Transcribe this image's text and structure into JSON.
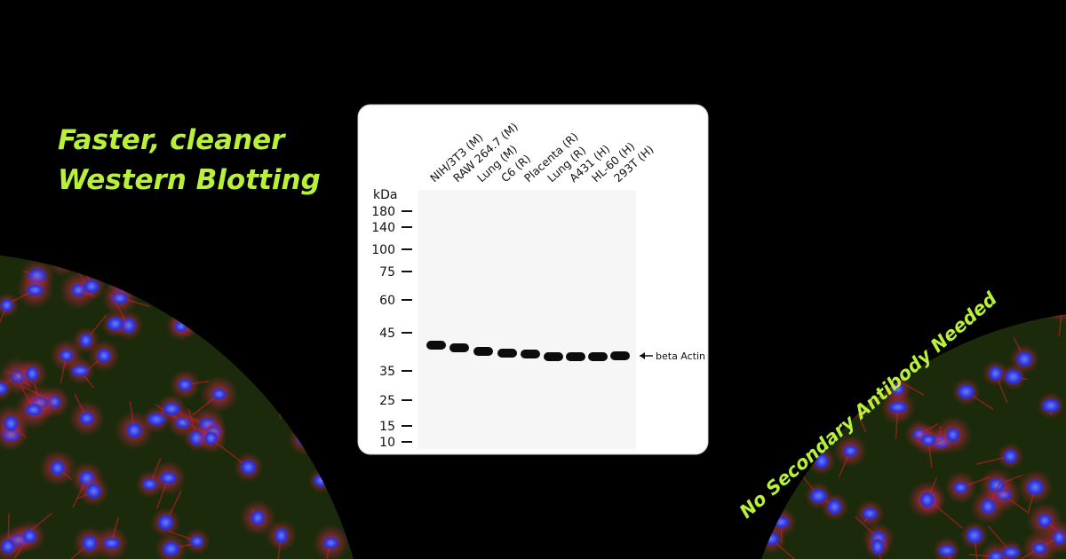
{
  "headline": [
    "Faster, cleaner",
    "Western Blotting"
  ],
  "blot": {
    "unit": "kDa",
    "lanes": [
      "NIH/3T3 (M)",
      "RAW 264.7 (M)",
      "Lung (M)",
      "C6 (R)",
      "Placenta (R)",
      "Lung (R)",
      "A431 (H)",
      "HL-60 (H)",
      "293T (H)"
    ],
    "markers": [
      "180",
      "140",
      "100",
      "75",
      "60",
      "45",
      "35",
      "25",
      "15",
      "10"
    ],
    "band_label": "beta Actin"
  },
  "side_text": "No Secondary Antibody Needed"
}
